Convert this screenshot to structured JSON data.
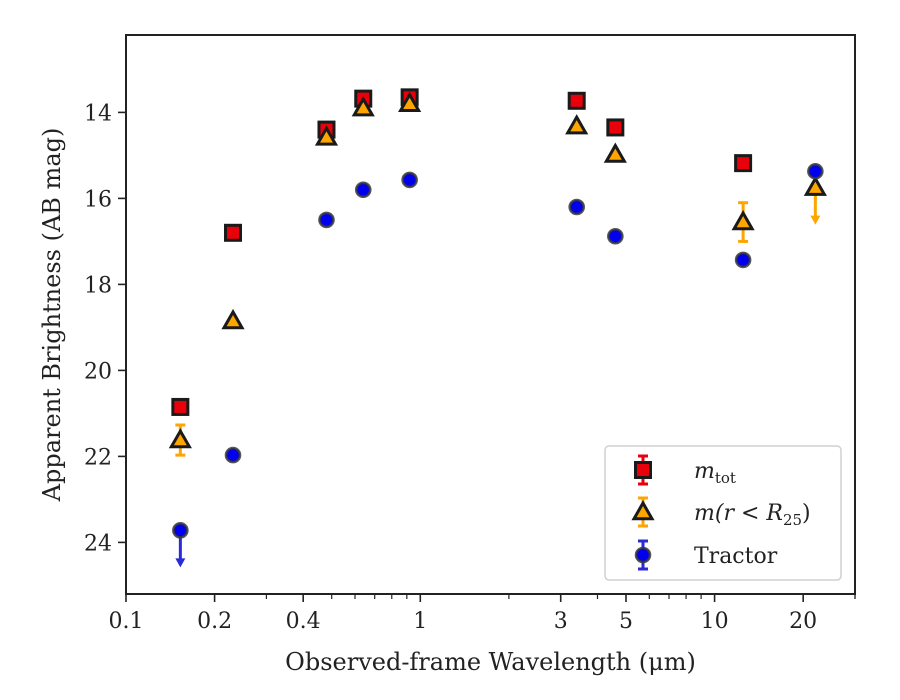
{
  "chart_data": {
    "type": "scatter",
    "xlabel": "Observed-frame Wavelength (μm)",
    "ylabel": "Apparent Brightness (AB mag)",
    "x_scale": "log",
    "xlim": [
      0.1,
      30
    ],
    "ylim": [
      25.2,
      12.2
    ],
    "y_inverted": true,
    "x_ticks": [
      {
        "value": 0.1,
        "label": "0.1"
      },
      {
        "value": 0.2,
        "label": "0.2"
      },
      {
        "value": 0.4,
        "label": "0.4"
      },
      {
        "value": 1,
        "label": "1"
      },
      {
        "value": 3,
        "label": "3"
      },
      {
        "value": 5,
        "label": "5"
      },
      {
        "value": 10,
        "label": "10"
      },
      {
        "value": 20,
        "label": "20"
      }
    ],
    "y_ticks": [
      {
        "value": 14,
        "label": "14"
      },
      {
        "value": 16,
        "label": "16"
      },
      {
        "value": 18,
        "label": "18"
      },
      {
        "value": 20,
        "label": "20"
      },
      {
        "value": 22,
        "label": "22"
      },
      {
        "value": 24,
        "label": "24"
      }
    ],
    "grid": false,
    "legend_position": "bottom-right",
    "series": [
      {
        "name": "m_tot",
        "legend_label": "m",
        "legend_subscript": "tot",
        "marker": "square",
        "color": "#e8000b",
        "errcolor": "#e8000b",
        "points": [
          {
            "x": 0.153,
            "y": 20.85
          },
          {
            "x": 0.231,
            "y": 16.8
          },
          {
            "x": 0.48,
            "y": 14.4
          },
          {
            "x": 0.64,
            "y": 13.68
          },
          {
            "x": 0.92,
            "y": 13.65
          },
          {
            "x": 3.4,
            "y": 13.73
          },
          {
            "x": 4.6,
            "y": 14.35
          },
          {
            "x": 12.5,
            "y": 15.18
          }
        ]
      },
      {
        "name": "m(r < R25)",
        "legend_label": "m(r < R",
        "legend_subscript": "25",
        "legend_suffix": ")",
        "marker": "triangle",
        "color": "#ffa500",
        "errcolor": "#ffa500",
        "points": [
          {
            "x": 0.153,
            "y": 21.62,
            "err": 0.35
          },
          {
            "x": 0.231,
            "y": 18.85
          },
          {
            "x": 0.48,
            "y": 14.58
          },
          {
            "x": 0.64,
            "y": 13.9
          },
          {
            "x": 0.92,
            "y": 13.8
          },
          {
            "x": 3.4,
            "y": 14.32
          },
          {
            "x": 4.6,
            "y": 14.98
          },
          {
            "x": 12.5,
            "y": 16.55,
            "err": 0.45
          },
          {
            "x": 22.0,
            "y": 15.75,
            "upper_limit": true
          }
        ]
      },
      {
        "name": "Tractor",
        "legend_label": "Tractor",
        "marker": "circle",
        "color": "#0000ee",
        "errcolor": "#2a2ad8",
        "points": [
          {
            "x": 0.153,
            "y": 23.72,
            "upper_limit": true
          },
          {
            "x": 0.231,
            "y": 21.97
          },
          {
            "x": 0.48,
            "y": 16.5
          },
          {
            "x": 0.64,
            "y": 15.8
          },
          {
            "x": 0.92,
            "y": 15.57
          },
          {
            "x": 3.4,
            "y": 16.2
          },
          {
            "x": 4.6,
            "y": 16.88
          },
          {
            "x": 12.5,
            "y": 17.43
          },
          {
            "x": 22.0,
            "y": 15.37
          }
        ]
      }
    ]
  }
}
